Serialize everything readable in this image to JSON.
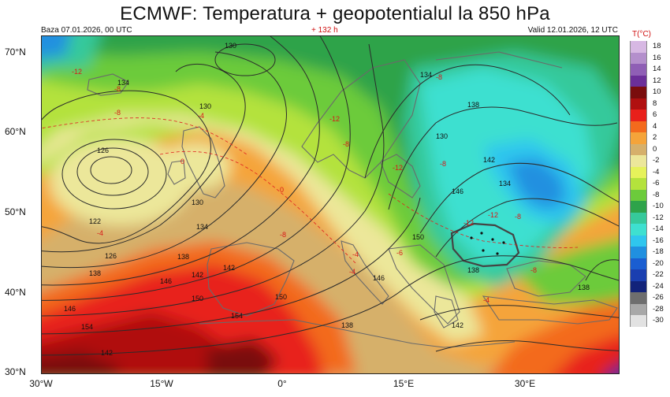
{
  "title": "ECMWF:  Temperatura + geopotentialul la 850 hPa",
  "base_time": "Baza 07.01.2026, 00 UTC",
  "forecast_offset": "+ 132 h",
  "valid_time": "Valid 12.01.2026, 12 UTC",
  "legend": {
    "title": "T(°C)",
    "entries": [
      {
        "value": "18",
        "color": "#d7b8e3"
      },
      {
        "value": "16",
        "color": "#b48fcc"
      },
      {
        "value": "14",
        "color": "#8f5fb5"
      },
      {
        "value": "12",
        "color": "#6b2f99"
      },
      {
        "value": "10",
        "color": "#7a0d0d"
      },
      {
        "value": "8",
        "color": "#b01010"
      },
      {
        "value": "6",
        "color": "#e8201b"
      },
      {
        "value": "4",
        "color": "#f36a1d"
      },
      {
        "value": "2",
        "color": "#f5a43a"
      },
      {
        "value": "0",
        "color": "#d6b06b"
      },
      {
        "value": "-2",
        "color": "#ece79a"
      },
      {
        "value": "-4",
        "color": "#e6f25a"
      },
      {
        "value": "-6",
        "color": "#b4e23c"
      },
      {
        "value": "-8",
        "color": "#6ccb3b"
      },
      {
        "value": "-10",
        "color": "#2ea34a"
      },
      {
        "value": "-12",
        "color": "#36c99b"
      },
      {
        "value": "-14",
        "color": "#3ee0d0"
      },
      {
        "value": "-16",
        "color": "#2fc6ee"
      },
      {
        "value": "-18",
        "color": "#2090e0"
      },
      {
        "value": "-20",
        "color": "#1a5ed1"
      },
      {
        "value": "-22",
        "color": "#1a3fb0"
      },
      {
        "value": "-24",
        "color": "#12237a"
      },
      {
        "value": "-26",
        "color": "#6e6e6e"
      },
      {
        "value": "-28",
        "color": "#a8a8a8"
      },
      {
        "value": "-30",
        "color": "#e2e2e2"
      }
    ]
  },
  "latitude_labels": [
    "70°N",
    "60°N",
    "50°N",
    "40°N",
    "30°N"
  ],
  "longitude_labels": [
    "30°W",
    "15°W",
    "0°",
    "15°E",
    "30°E"
  ],
  "geopotential_labels": [
    "130",
    "134",
    "130",
    "126",
    "122",
    "126",
    "130",
    "134",
    "138",
    "142",
    "146",
    "150",
    "154",
    "138",
    "142",
    "146",
    "150",
    "154",
    "142",
    "138",
    "134",
    "138",
    "142",
    "146",
    "150",
    "146",
    "142",
    "138",
    "134",
    "130",
    "138"
  ],
  "temperature_labels": [
    "-12",
    "-8",
    "-8",
    "-4",
    "0",
    "0",
    "-8",
    "-4",
    "-12",
    "-8",
    "-8",
    "-12",
    "-8",
    "-12",
    "-12",
    "-8",
    "-4",
    "-6",
    "-8",
    "-4",
    "-4"
  ]
}
